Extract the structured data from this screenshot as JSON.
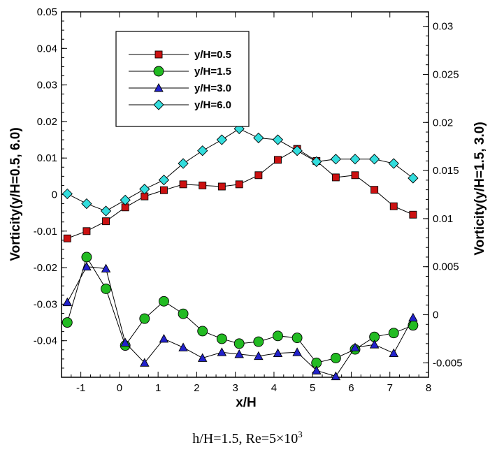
{
  "chart_data": {
    "type": "line",
    "xlabel": "x/H",
    "ylabel_left": "Vorticity(y/H=0.5, 6.0)",
    "ylabel_right": "Vorticity(y/H=1.5, 3.0)",
    "xlim": [
      -1.5,
      8
    ],
    "ylim_left": [
      -0.05,
      0.05
    ],
    "ylim_right": [
      -0.0065,
      0.0315
    ],
    "x_ticks": [
      "-1",
      "0",
      "1",
      "2",
      "3",
      "4",
      "5",
      "6",
      "7",
      "8"
    ],
    "y_ticks_left": [
      "0.05",
      "0.04",
      "0.03",
      "0.02",
      "0.01",
      "0",
      "-0.01",
      "-0.02",
      "-0.03",
      "-0.04"
    ],
    "y_ticks_right": [
      "0.03",
      "0.025",
      "0.02",
      "0.015",
      "0.01",
      "0.005",
      "0",
      "-0.005"
    ],
    "legend_position": "top-left",
    "series": [
      {
        "name": "y/H=0.5",
        "axis": "left",
        "marker": "square",
        "color": "#cc1111",
        "x": [
          -1.35,
          -0.85,
          -0.35,
          0.15,
          0.65,
          1.15,
          1.65,
          2.15,
          2.65,
          3.1,
          3.6,
          4.1,
          4.6,
          5.1,
          5.6,
          6.1,
          6.6,
          7.1,
          7.6
        ],
        "y": [
          -0.012,
          -0.01,
          -0.0073,
          -0.0035,
          -0.0005,
          0.0012,
          0.0028,
          0.0025,
          0.0022,
          0.0028,
          0.0053,
          0.0095,
          0.0125,
          0.0092,
          0.0047,
          0.0053,
          0.0013,
          -0.0032,
          -0.0055
        ]
      },
      {
        "name": "y/H=1.5",
        "axis": "right",
        "marker": "circle",
        "color": "#22bb22",
        "x": [
          -1.35,
          -0.85,
          -0.35,
          0.15,
          0.65,
          1.15,
          1.65,
          2.15,
          2.65,
          3.1,
          3.6,
          4.1,
          4.6,
          5.1,
          5.6,
          6.1,
          6.6,
          7.1,
          7.6
        ],
        "y": [
          -0.0008,
          0.006,
          0.0027,
          -0.0032,
          -0.0004,
          0.0014,
          0.0001,
          -0.0017,
          -0.0025,
          -0.003,
          -0.0028,
          -0.0022,
          -0.0024,
          -0.005,
          -0.0045,
          -0.0036,
          -0.0023,
          -0.0019,
          -0.0011
        ]
      },
      {
        "name": "y/H=3.0",
        "axis": "right",
        "marker": "triangle",
        "color": "#2222cc",
        "x": [
          -1.35,
          -0.85,
          -0.35,
          0.15,
          0.65,
          1.15,
          1.65,
          2.15,
          2.65,
          3.1,
          3.6,
          4.1,
          4.6,
          5.1,
          5.6,
          6.1,
          6.6,
          7.1,
          7.6
        ],
        "y": [
          0.0013,
          0.005,
          0.0048,
          -0.0029,
          -0.005,
          -0.0025,
          -0.0034,
          -0.0045,
          -0.0039,
          -0.0041,
          -0.0043,
          -0.004,
          -0.0039,
          -0.0058,
          -0.0064,
          -0.0034,
          -0.0031,
          -0.004,
          -0.0003
        ]
      },
      {
        "name": "y/H=6.0",
        "axis": "left",
        "marker": "diamond",
        "color": "#33dddd",
        "x": [
          -1.35,
          -0.85,
          -0.35,
          0.15,
          0.65,
          1.15,
          1.65,
          2.15,
          2.65,
          3.1,
          3.6,
          4.1,
          4.6,
          5.1,
          5.6,
          6.1,
          6.6,
          7.1,
          7.6
        ],
        "y": [
          0.0002,
          -0.0025,
          -0.0045,
          -0.0015,
          0.0015,
          0.004,
          0.0085,
          0.012,
          0.015,
          0.018,
          0.0155,
          0.015,
          0.012,
          0.009,
          0.0097,
          0.0097,
          0.0097,
          0.0085,
          0.0045
        ]
      }
    ]
  },
  "caption": {
    "left": "h/H=1.5,  Re=5×10",
    "sup": "3"
  }
}
